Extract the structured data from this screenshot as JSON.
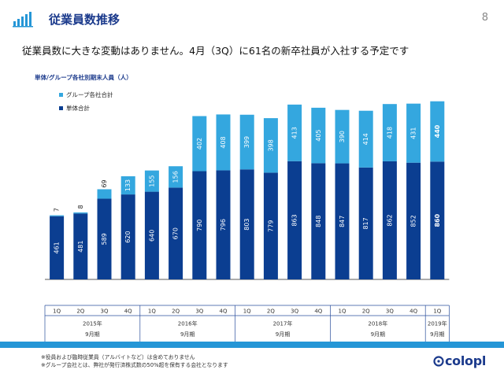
{
  "header": {
    "title": "従業員数推移",
    "page_number": "8",
    "subtitle": "従業員数に大きな変動はありません。4月（3Q）に61名の新卒社員が入社する予定です",
    "icon": "bar-chart-icon"
  },
  "chart_data": {
    "type": "bar",
    "stacked": true,
    "title": "単体/グループ各社別期末人員（人）",
    "legend_position": "top-left",
    "categories": [
      "1Q",
      "2Q",
      "3Q",
      "4Q",
      "1Q",
      "2Q",
      "3Q",
      "4Q",
      "1Q",
      "2Q",
      "3Q",
      "4Q",
      "1Q",
      "2Q",
      "3Q",
      "4Q",
      "1Q"
    ],
    "groups": [
      {
        "label": "2015年9月期",
        "size": 4
      },
      {
        "label": "2016年9月期",
        "size": 4
      },
      {
        "label": "2017年9月期",
        "size": 4
      },
      {
        "label": "2018年9月期",
        "size": 4
      },
      {
        "label": "2019年9月期",
        "size": 1
      }
    ],
    "series": [
      {
        "name": "単体合計",
        "color": "#0b3e91",
        "values": [
          461,
          481,
          589,
          620,
          640,
          670,
          790,
          796,
          803,
          779,
          863,
          848,
          847,
          817,
          862,
          852,
          860
        ]
      },
      {
        "name": "グループ各社合計",
        "color": "#34a7df",
        "values": [
          7,
          8,
          69,
          133,
          155,
          156,
          402,
          408,
          399,
          398,
          413,
          405,
          390,
          414,
          418,
          431,
          440
        ]
      }
    ],
    "ylim": [
      0,
      1350
    ],
    "grid": false
  },
  "footnotes": [
    "※役員および臨時従業員（アルバイトなど）は含めておりません",
    "※グループ会社とは、弊社が発行済株式数の50%超を保有する会社となります"
  ],
  "logo": {
    "text": "colopl",
    "icon": "colopl-logo-icon",
    "color": "#1b3a8c"
  }
}
